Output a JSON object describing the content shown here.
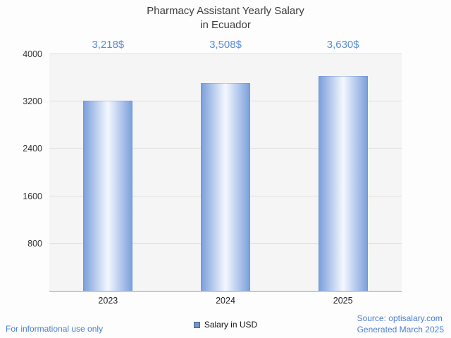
{
  "title": {
    "line1": "Pharmacy Assistant Yearly Salary",
    "line2": "in Ecuador"
  },
  "chart_data": {
    "type": "bar",
    "categories": [
      "2023",
      "2024",
      "2025"
    ],
    "values": [
      3218,
      3508,
      3630
    ],
    "value_labels": [
      "3,218$",
      "3,508$",
      "3,630$"
    ],
    "title": "Pharmacy Assistant Yearly Salary in Ecuador",
    "xlabel": "",
    "ylabel": "",
    "ylim": [
      0,
      4000
    ],
    "yticks": [
      800,
      1600,
      2400,
      3200,
      4000
    ],
    "grid": true,
    "legend": {
      "label": "Salary in USD",
      "position": "bottom"
    },
    "colors": {
      "bar_edge": "#7da0dc",
      "bar_center": "#f4f8ff",
      "value_label": "#5b8ad6",
      "legend_fill": "#6f96d1",
      "legend_border": "#44619c",
      "footer_text": "#4a7fd0"
    }
  },
  "footer": {
    "note": "For informational use only",
    "source": "Source: optisalary.com",
    "generated": "Generated March 2025"
  }
}
